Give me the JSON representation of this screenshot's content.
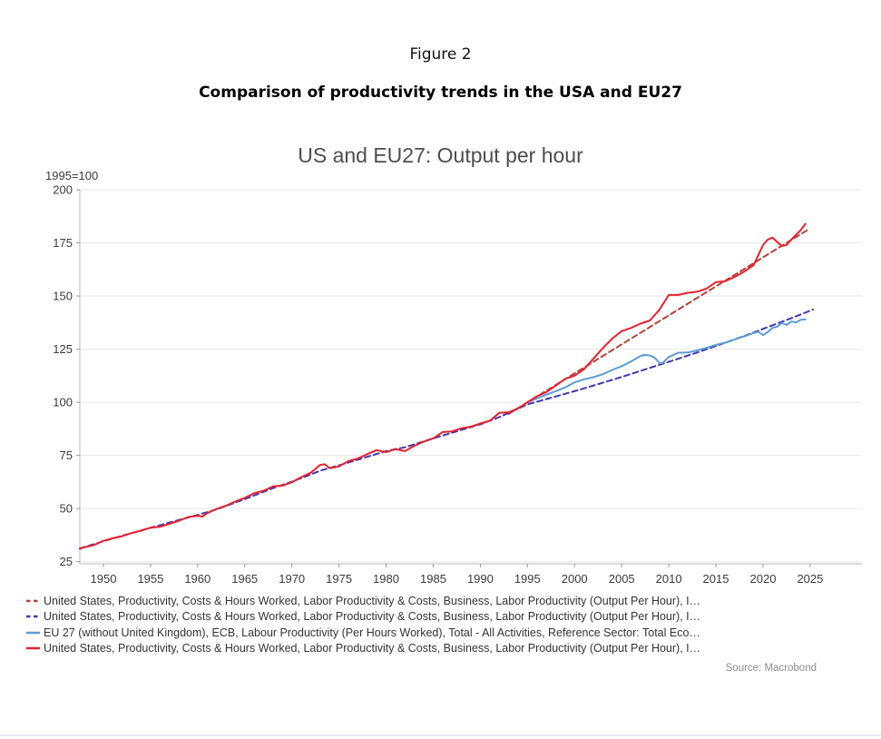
{
  "page": {
    "figure_label": "Figure 2",
    "figure_title": "Comparison of productivity trends in the USA and EU27",
    "source": "Source: Macrobond"
  },
  "chart_data": {
    "type": "line",
    "title": "US and EU27: Output per hour",
    "unit_label": "1995=100",
    "xlim": [
      1947.5,
      2030.5
    ],
    "ylim": [
      24,
      200
    ],
    "x_ticks": [
      1950,
      1955,
      1960,
      1965,
      1970,
      1975,
      1980,
      1985,
      1990,
      1995,
      2000,
      2005,
      2010,
      2015,
      2020,
      2025
    ],
    "y_ticks": [
      25,
      50,
      75,
      100,
      125,
      150,
      175,
      200
    ],
    "grid": "horizontal",
    "legend_position": "bottom",
    "colors": {
      "us_trend_recent": "#b5423a",
      "us_trend_pre1995": "#4038b0",
      "eu27_actual": "#5b9bd5",
      "us_actual": "#e8212e",
      "gridline": "#e6e6e6",
      "axis": "#b8b8b8",
      "tick": "#999999",
      "tick_label": "#3a3a3a"
    },
    "series": [
      {
        "id": "us-trend-recent",
        "legend_label": "United States, Productivity, Costs & Hours Worked, Labor Productivity & Costs, Business, Labor Productivity (Output Per Hour), I…",
        "color": "#b5423a",
        "style": "dashed",
        "points": [
          [
            1993,
            94.5
          ],
          [
            2024.7,
            181
          ]
        ]
      },
      {
        "id": "us-trend-pre1995",
        "legend_label": "United States, Productivity, Costs & Hours Worked, Labor Productivity & Costs, Business, Labor Productivity (Output Per Hour), I…",
        "color": "#4038b0",
        "style": "dashed",
        "points": [
          [
            1947.5,
            31.2
          ],
          [
            1950,
            34.6
          ],
          [
            1952,
            37.2
          ],
          [
            1955,
            40.9
          ],
          [
            1958,
            44.6
          ],
          [
            1960,
            47
          ],
          [
            1962,
            49.6
          ],
          [
            1965,
            54.4
          ],
          [
            1968,
            59.6
          ],
          [
            1970,
            62.6
          ],
          [
            1972,
            66
          ],
          [
            1973,
            67.8
          ],
          [
            1975,
            70.3
          ],
          [
            1977,
            73
          ],
          [
            1980,
            77
          ],
          [
            1982,
            78.8
          ],
          [
            1985,
            83
          ],
          [
            1988,
            87
          ],
          [
            1990,
            89.6
          ],
          [
            1992,
            93
          ],
          [
            1994,
            97
          ],
          [
            1995,
            99
          ],
          [
            1997,
            101.5
          ],
          [
            2000,
            105.2
          ],
          [
            2003,
            109.2
          ],
          [
            2005,
            111.9
          ],
          [
            2008,
            116.2
          ],
          [
            2010,
            119
          ],
          [
            2013,
            123.4
          ],
          [
            2015,
            126.5
          ],
          [
            2018,
            131.2
          ],
          [
            2020,
            134.5
          ],
          [
            2022,
            137.9
          ],
          [
            2024,
            141.3
          ],
          [
            2025.3,
            143.6
          ]
        ]
      },
      {
        "id": "eu27-actual",
        "legend_label": "EU 27 (without United Kingdom), ECB, Labour Productivity (Per Hours Worked), Total - All Activities, Reference Sector: Total Eco…",
        "color": "#5b9bd5",
        "style": "solid",
        "points": [
          [
            1995,
            100
          ],
          [
            1996,
            101.8
          ],
          [
            1997,
            103.6
          ],
          [
            1998,
            105.2
          ],
          [
            1999,
            107
          ],
          [
            2000,
            109.3
          ],
          [
            2001,
            110.8
          ],
          [
            2002,
            111.8
          ],
          [
            2003,
            113.2
          ],
          [
            2004,
            115.2
          ],
          [
            2005,
            117
          ],
          [
            2006,
            119.2
          ],
          [
            2007,
            121.8
          ],
          [
            2007.5,
            122.3
          ],
          [
            2008,
            122
          ],
          [
            2008.5,
            121
          ],
          [
            2009,
            118.6
          ],
          [
            2009.3,
            118.3
          ],
          [
            2010,
            121.3
          ],
          [
            2010.5,
            122.3
          ],
          [
            2011,
            123.3
          ],
          [
            2012,
            123.4
          ],
          [
            2013,
            124.4
          ],
          [
            2014,
            125.6
          ],
          [
            2015,
            127
          ],
          [
            2016,
            128
          ],
          [
            2017,
            129.6
          ],
          [
            2018,
            131
          ],
          [
            2019,
            132.6
          ],
          [
            2019.5,
            133.2
          ],
          [
            2020,
            131.6
          ],
          [
            2020.5,
            133
          ],
          [
            2021,
            135
          ],
          [
            2021.5,
            135.6
          ],
          [
            2022,
            137.3
          ],
          [
            2022.5,
            136.4
          ],
          [
            2023,
            138
          ],
          [
            2023.5,
            137.6
          ],
          [
            2024,
            138.8
          ],
          [
            2024.5,
            139
          ]
        ]
      },
      {
        "id": "us-actual",
        "legend_label": "United States, Productivity, Costs & Hours Worked, Labor Productivity & Costs, Business, Labor Productivity (Output Per Hour), I…",
        "color": "#e8212e",
        "style": "solid",
        "points": [
          [
            1947.5,
            31
          ],
          [
            1948,
            31.8
          ],
          [
            1949,
            32.8
          ],
          [
            1950,
            34.8
          ],
          [
            1951,
            36
          ],
          [
            1952,
            37
          ],
          [
            1953,
            38.5
          ],
          [
            1954,
            39.6
          ],
          [
            1955,
            41
          ],
          [
            1956,
            41.4
          ],
          [
            1957,
            42.8
          ],
          [
            1958,
            44.2
          ],
          [
            1959,
            46
          ],
          [
            1960,
            46.6
          ],
          [
            1960.5,
            46.2
          ],
          [
            1961,
            47.8
          ],
          [
            1962,
            49.8
          ],
          [
            1963,
            51.3
          ],
          [
            1964,
            53.3
          ],
          [
            1965,
            55
          ],
          [
            1966,
            57.2
          ],
          [
            1967,
            58.4
          ],
          [
            1968,
            60.4
          ],
          [
            1969,
            60.8
          ],
          [
            1970,
            62.3
          ],
          [
            1971,
            64.8
          ],
          [
            1972,
            66.8
          ],
          [
            1973,
            70.5
          ],
          [
            1973.5,
            70.8
          ],
          [
            1974,
            69
          ],
          [
            1975,
            69.8
          ],
          [
            1976,
            72.3
          ],
          [
            1977,
            73.5
          ],
          [
            1978,
            75.6
          ],
          [
            1979,
            77.5
          ],
          [
            1980,
            76.5
          ],
          [
            1981,
            78
          ],
          [
            1982,
            77
          ],
          [
            1983,
            79.5
          ],
          [
            1984,
            81.5
          ],
          [
            1985,
            83
          ],
          [
            1986,
            86
          ],
          [
            1987,
            86.3
          ],
          [
            1988,
            87.8
          ],
          [
            1989,
            88.5
          ],
          [
            1990,
            90
          ],
          [
            1991,
            91.3
          ],
          [
            1992,
            95
          ],
          [
            1993,
            95.3
          ],
          [
            1994,
            97
          ],
          [
            1995,
            100
          ],
          [
            1996,
            102.8
          ],
          [
            1997,
            104.8
          ],
          [
            1998,
            107.8
          ],
          [
            1999,
            111
          ],
          [
            2000,
            112.5
          ],
          [
            2001,
            115.5
          ],
          [
            2002,
            120.5
          ],
          [
            2003,
            125.5
          ],
          [
            2004,
            130
          ],
          [
            2005,
            133.5
          ],
          [
            2006,
            135
          ],
          [
            2007,
            137
          ],
          [
            2008,
            138.5
          ],
          [
            2009,
            143.5
          ],
          [
            2010,
            150.5
          ],
          [
            2011,
            150.5
          ],
          [
            2012,
            151.5
          ],
          [
            2013,
            152
          ],
          [
            2014,
            153.5
          ],
          [
            2015,
            156.5
          ],
          [
            2016,
            157
          ],
          [
            2017,
            159
          ],
          [
            2018,
            161.5
          ],
          [
            2019,
            164.5
          ],
          [
            2020,
            174
          ],
          [
            2020.5,
            176.5
          ],
          [
            2021,
            177.5
          ],
          [
            2022,
            173.5
          ],
          [
            2022.5,
            174
          ],
          [
            2023,
            176.5
          ],
          [
            2024,
            181
          ],
          [
            2024.5,
            184
          ]
        ]
      }
    ]
  }
}
